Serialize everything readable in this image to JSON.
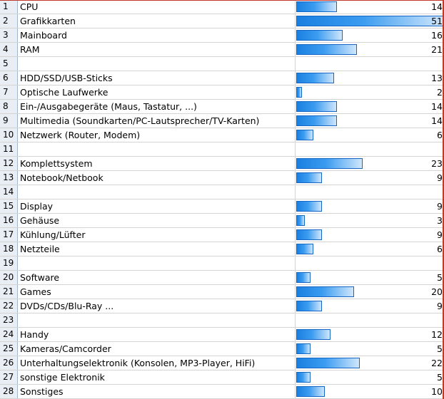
{
  "chart_data": {
    "type": "bar",
    "xlim": [
      0,
      51
    ],
    "rows": [
      {
        "num": "1",
        "label": "CPU",
        "value": 14
      },
      {
        "num": "2",
        "label": "Grafikkarten",
        "value": 51
      },
      {
        "num": "3",
        "label": "Mainboard",
        "value": 16
      },
      {
        "num": "4",
        "label": "RAM",
        "value": 21
      },
      {
        "num": "5",
        "label": "",
        "value": null
      },
      {
        "num": "6",
        "label": "HDD/SSD/USB-Sticks",
        "value": 13
      },
      {
        "num": "7",
        "label": "Optische Laufwerke",
        "value": 2
      },
      {
        "num": "8",
        "label": "Ein-/Ausgabegeräte (Maus, Tastatur, ...)",
        "value": 14
      },
      {
        "num": "9",
        "label": "Multimedia (Soundkarten/PC-Lautsprecher/TV-Karten)",
        "value": 14
      },
      {
        "num": "10",
        "label": "Netzwerk (Router, Modem)",
        "value": 6
      },
      {
        "num": "11",
        "label": "",
        "value": null
      },
      {
        "num": "12",
        "label": "Komplettsystem",
        "value": 23
      },
      {
        "num": "13",
        "label": "Notebook/Netbook",
        "value": 9
      },
      {
        "num": "14",
        "label": "",
        "value": null
      },
      {
        "num": "15",
        "label": "Display",
        "value": 9
      },
      {
        "num": "16",
        "label": "Gehäuse",
        "value": 3
      },
      {
        "num": "17",
        "label": "Kühlung/Lüfter",
        "value": 9
      },
      {
        "num": "18",
        "label": "Netzteile",
        "value": 6
      },
      {
        "num": "19",
        "label": "",
        "value": null
      },
      {
        "num": "20",
        "label": "Software",
        "value": 5
      },
      {
        "num": "21",
        "label": "Games",
        "value": 20
      },
      {
        "num": "22",
        "label": "DVDs/CDs/Blu-Ray ...",
        "value": 9
      },
      {
        "num": "23",
        "label": "",
        "value": null
      },
      {
        "num": "24",
        "label": "Handy",
        "value": 12
      },
      {
        "num": "25",
        "label": "Kameras/Camcorder",
        "value": 5
      },
      {
        "num": "26",
        "label": "Unterhaltungselektronik (Konsolen, MP3-Player, HiFi)",
        "value": 22
      },
      {
        "num": "27",
        "label": "sonstige Elektronik",
        "value": 5
      },
      {
        "num": "28",
        "label": "Sonstiges",
        "value": 10
      }
    ]
  },
  "colors": {
    "bar_start": "#1a7fe0",
    "bar_end": "#cfe6fb",
    "bar_border": "#1667c4",
    "row_header_bg": "#e9eef5"
  }
}
